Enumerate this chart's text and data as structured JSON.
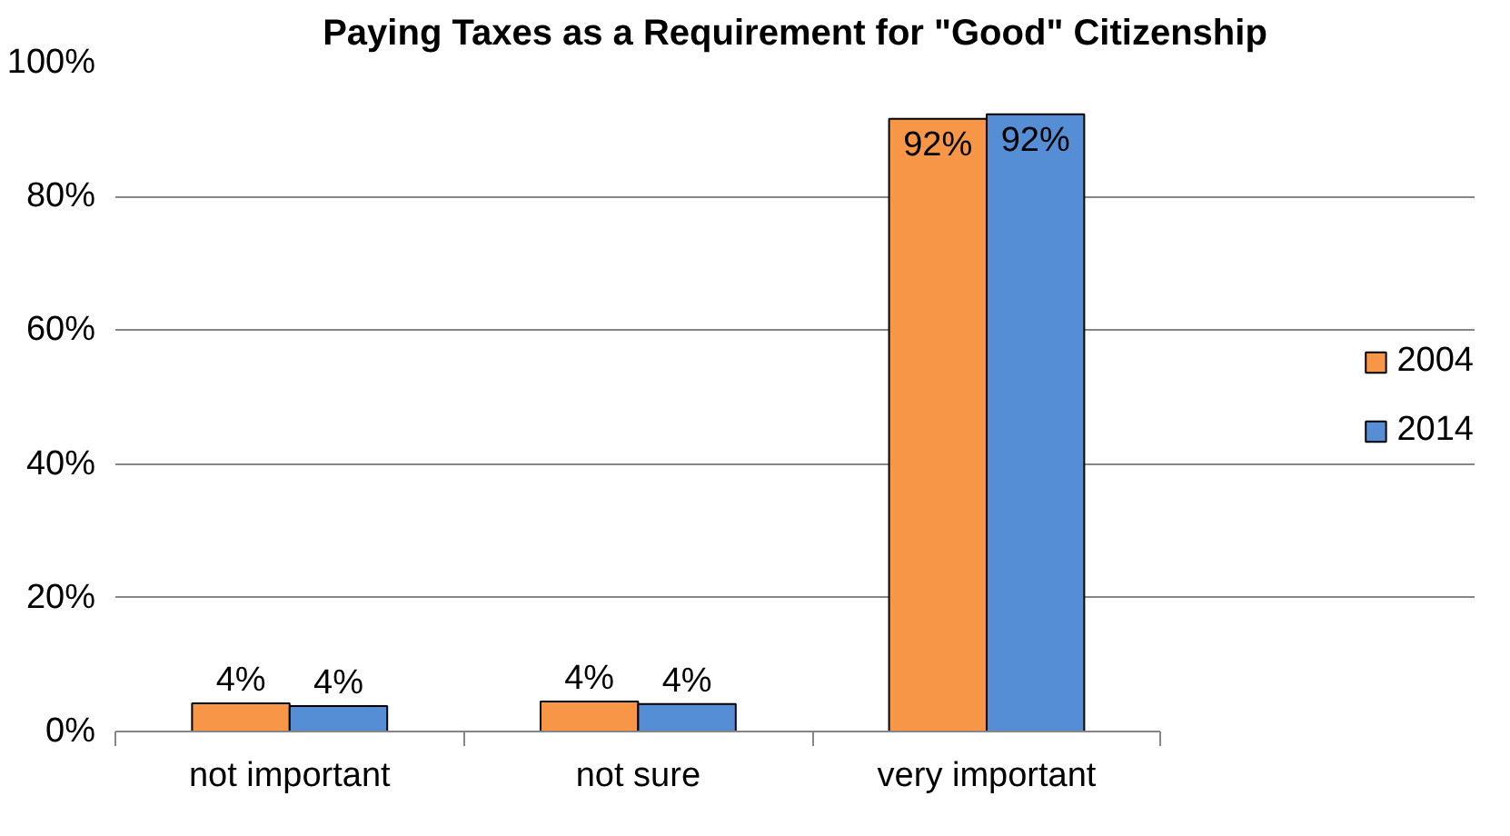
{
  "chart_data": {
    "type": "bar",
    "title": "Paying Taxes as a Requirement for \"Good\" Citizenship",
    "categories": [
      "not important",
      "not sure",
      "very important"
    ],
    "series": [
      {
        "name": "2004",
        "color": "#f79646",
        "values": [
          4.2,
          4.5,
          91.6
        ],
        "value_labels": [
          "4%",
          "4%",
          "92%"
        ]
      },
      {
        "name": "2014",
        "color": "#558ed5",
        "values": [
          3.8,
          4.1,
          92.3
        ],
        "value_labels": [
          "4%",
          "4%",
          "92%"
        ]
      }
    ],
    "ylim": [
      0,
      100
    ],
    "yticks": [
      {
        "value": 0,
        "label": "0%"
      },
      {
        "value": 20,
        "label": "20%"
      },
      {
        "value": 40,
        "label": "40%"
      },
      {
        "value": 60,
        "label": "60%"
      },
      {
        "value": 80,
        "label": "80%"
      },
      {
        "value": 100,
        "label": "100%"
      }
    ],
    "grid": "y",
    "legend": "right"
  }
}
